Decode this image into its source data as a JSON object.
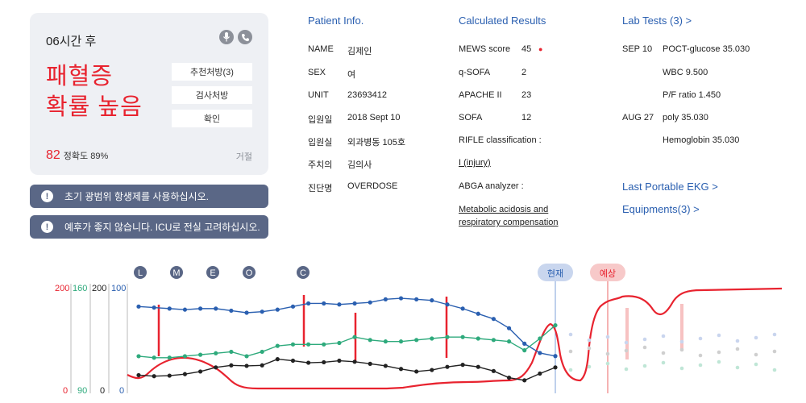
{
  "alert": {
    "timeframe": "06시간 후",
    "headline_line1": "패혈증",
    "headline_line2": "확률 높음",
    "buttons": [
      "추천처방(3)",
      "검사처방",
      "확인"
    ],
    "score": "82",
    "accuracy": "정확도 89%",
    "reject": "거절"
  },
  "notices": [
    "초기 광범위 항생제를 사용하십시오.",
    "예후가 좋지 않습니다. ICU로 전실 고려하십시오."
  ],
  "patient": {
    "heading": "Patient Info.",
    "fields": [
      {
        "label": "NAME",
        "value": "김제인"
      },
      {
        "label": "SEX",
        "value": "여"
      },
      {
        "label": "UNIT",
        "value": "23693412"
      },
      {
        "label": "입원일",
        "value": "2018 Sept 10"
      },
      {
        "label": "입원실",
        "value": "외과병동 105호"
      },
      {
        "label": "주치의",
        "value": "김의사"
      },
      {
        "label": "진단명",
        "value": "OVERDOSE"
      }
    ]
  },
  "results": {
    "heading": "Calculated Results",
    "scores": [
      {
        "label": "MEWS score",
        "value": "45"
      },
      {
        "label": "q-SOFA",
        "value": "2"
      },
      {
        "label": "APACHE II",
        "value": "23"
      },
      {
        "label": "SOFA",
        "value": "12"
      }
    ],
    "rifle_label": "RIFLE classification :",
    "rifle_value": "I (injury)",
    "abga_label": "ABGA analyzer :",
    "abga_line1": "Metabolic acidosis and",
    "abga_line2": "respiratory compensation"
  },
  "labs": {
    "heading": "Lab Tests (3) >",
    "entries": [
      {
        "date": "SEP 10",
        "value": "POCT-glucose  35.030"
      },
      {
        "date": "",
        "value": "WBC  9.500"
      },
      {
        "date": "",
        "value": "P/F ratio  1.450"
      },
      {
        "date": "AUG 27",
        "value": "poly  35.030"
      },
      {
        "date": "",
        "value": "Hemoglobin  35.030"
      }
    ],
    "ekg_link": "Last Portable EKG >",
    "equipment_link": "Equipments(3) >"
  },
  "chart_markers": [
    "L",
    "M",
    "E",
    "O",
    "C"
  ],
  "chart_tags": {
    "current": "현재",
    "forecast": "예상"
  },
  "chart_data": {
    "type": "line",
    "axes": [
      {
        "color": "#e8232f",
        "top": "200",
        "bottom": "0"
      },
      {
        "color": "#2eaa7c",
        "top": "160",
        "bottom": "90"
      },
      {
        "color": "#222222",
        "top": "200",
        "bottom": "0"
      },
      {
        "color": "#2a5fb0",
        "top": "100",
        "bottom": "0"
      }
    ],
    "series": [
      {
        "color": "#2a5fb0",
        "values": [
          81,
          80,
          79,
          78,
          79,
          79,
          77,
          75,
          76,
          78,
          81,
          84,
          84,
          83,
          84,
          85,
          88,
          89,
          88,
          87,
          83,
          79,
          74,
          69,
          60,
          45,
          36,
          33
        ]
      },
      {
        "color": "#222222",
        "values": [
          29,
          27,
          28,
          31,
          36,
          44,
          48,
          47,
          48,
          60,
          57,
          53,
          54,
          57,
          55,
          51,
          47,
          41,
          36,
          39,
          45,
          49,
          45,
          37,
          24,
          19,
          32,
          44
        ]
      },
      {
        "color": "#2eaa7c",
        "values": [
          113,
          112,
          112,
          113,
          114,
          115,
          116,
          113,
          116,
          120,
          121,
          121,
          121,
          122,
          126,
          124,
          123,
          123,
          124,
          125,
          126,
          126,
          125,
          124,
          123,
          117,
          125,
          134
        ]
      }
    ],
    "forecast_points": {
      "color": "#b8c6e8",
      "count": 12
    }
  }
}
